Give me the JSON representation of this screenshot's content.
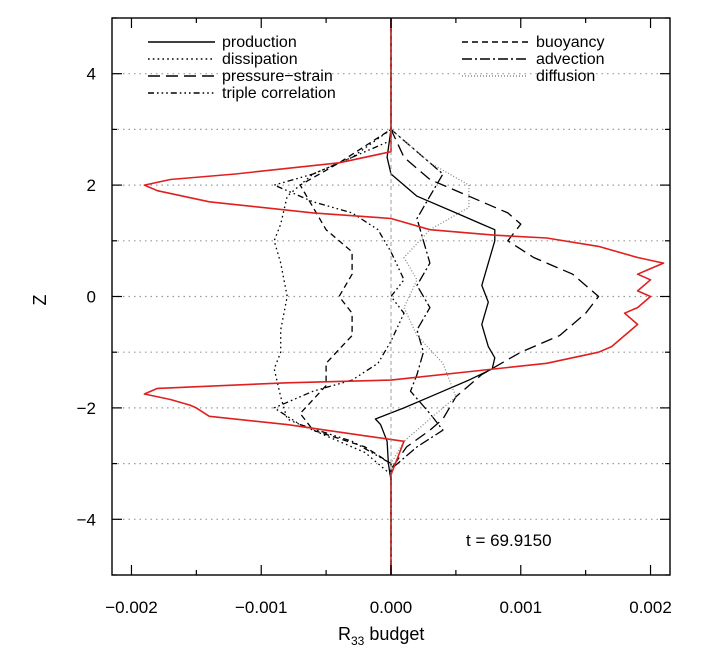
{
  "chart_data": {
    "type": "line",
    "xlabel": "R",
    "xlabel_sub": "33",
    "xlabel_suffix": " budget",
    "ylabel": "Z",
    "xlim": [
      -0.00215,
      0.00215
    ],
    "ylim": [
      -5,
      5
    ],
    "x_ticks": [
      -0.002,
      -0.001,
      0.0,
      0.001,
      0.002
    ],
    "x_tick_labels": [
      "−0.002",
      "−0.001",
      "0.000",
      "0.001",
      "0.002"
    ],
    "y_ticks": [
      -4,
      -2,
      0,
      2,
      4
    ],
    "y_tick_labels": [
      "−4",
      "−2",
      "0",
      "2",
      "4"
    ],
    "reference_lines_y": [
      -3,
      -1,
      1,
      3
    ],
    "annotation": "t = 69.9150",
    "legend_left": [
      "production",
      "dissipation",
      "pressure−strain",
      "triple correlation"
    ],
    "legend_right": [
      "buoyancy",
      "advection",
      "diffusion"
    ],
    "series": [
      {
        "name": "production",
        "color": "#000000",
        "dash": "",
        "points": [
          [
            0.0,
            -5
          ],
          [
            0.0,
            -3.3
          ],
          [
            -2e-05,
            -3.0
          ],
          [
            -3e-05,
            -2.6
          ],
          [
            -8e-05,
            -2.3
          ],
          [
            -0.00012,
            -2.2
          ],
          [
            0.0001,
            -2.0
          ],
          [
            0.0003,
            -1.8
          ],
          [
            0.0006,
            -1.5
          ],
          [
            0.00078,
            -1.3
          ],
          [
            0.0008,
            -1.1
          ],
          [
            0.00075,
            -0.9
          ],
          [
            0.0007,
            -0.5
          ],
          [
            0.00075,
            -0.1
          ],
          [
            0.0007,
            0.2
          ],
          [
            0.00075,
            0.6
          ],
          [
            0.0008,
            1.0
          ],
          [
            0.0008,
            1.2
          ],
          [
            0.0007,
            1.3
          ],
          [
            0.0005,
            1.5
          ],
          [
            0.0002,
            1.8
          ],
          [
            0.0,
            2.2
          ],
          [
            -3e-05,
            2.5
          ],
          [
            0.0,
            3.0
          ],
          [
            0.0,
            5
          ]
        ]
      },
      {
        "name": "dissipation",
        "color": "#000000",
        "dash": "1.6,3.2",
        "points": [
          [
            0.0,
            -5
          ],
          [
            0.0,
            -3.2
          ],
          [
            -0.0002,
            -2.8
          ],
          [
            -0.0005,
            -2.5
          ],
          [
            -0.0008,
            -2.2
          ],
          [
            -0.00085,
            -1.8
          ],
          [
            -0.0009,
            -1.3
          ],
          [
            -0.00085,
            -1.0
          ],
          [
            -0.00085,
            -0.6
          ],
          [
            -0.0008,
            0.0
          ],
          [
            -0.00085,
            0.6
          ],
          [
            -0.0009,
            1.0
          ],
          [
            -0.00085,
            1.3
          ],
          [
            -0.0008,
            1.8
          ],
          [
            -0.0006,
            2.2
          ],
          [
            -0.0003,
            2.5
          ],
          [
            0.0,
            3.0
          ],
          [
            0.0,
            5
          ]
        ]
      },
      {
        "name": "pressure−strain",
        "color": "#000000",
        "dash": "12,6",
        "points": [
          [
            0.0,
            -5
          ],
          [
            0.0,
            -3.1
          ],
          [
            0.00012,
            -2.7
          ],
          [
            0.0003,
            -2.4
          ],
          [
            0.0004,
            -2.2
          ],
          [
            0.0005,
            -1.8
          ],
          [
            0.0007,
            -1.4
          ],
          [
            0.001,
            -1.0
          ],
          [
            0.0013,
            -0.7
          ],
          [
            0.0015,
            -0.3
          ],
          [
            0.0016,
            0.0
          ],
          [
            0.0014,
            0.4
          ],
          [
            0.0011,
            0.7
          ],
          [
            0.0009,
            1.0
          ],
          [
            0.001,
            1.3
          ],
          [
            0.0009,
            1.5
          ],
          [
            0.0006,
            1.8
          ],
          [
            0.0003,
            2.1
          ],
          [
            0.0001,
            2.5
          ],
          [
            0.0,
            3.0
          ],
          [
            0.0,
            5
          ]
        ]
      },
      {
        "name": "triple correlation",
        "color": "#000000",
        "dash": "6,3,1.6,3,1.6,3,1.6,3",
        "points": [
          [
            0.0,
            -5
          ],
          [
            0.0,
            -3.0
          ],
          [
            -0.0003,
            -2.6
          ],
          [
            -0.0007,
            -2.3
          ],
          [
            -0.0009,
            -2.0
          ],
          [
            -0.0006,
            -1.7
          ],
          [
            -0.0003,
            -1.5
          ],
          [
            -0.0001,
            -1.2
          ],
          [
            0.0,
            -0.8
          ],
          [
            0.0001,
            -0.3
          ],
          [
            0.0,
            0.0
          ],
          [
            0.0001,
            0.3
          ],
          [
            0.0,
            0.8
          ],
          [
            -0.0001,
            1.2
          ],
          [
            -0.0003,
            1.5
          ],
          [
            -0.0006,
            1.7
          ],
          [
            -0.0009,
            2.0
          ],
          [
            -0.0006,
            2.2
          ],
          [
            -0.0003,
            2.5
          ],
          [
            0.0,
            2.8
          ],
          [
            0.0,
            5
          ]
        ]
      },
      {
        "name": "buoyancy",
        "color": "#000000",
        "dash": "6,4",
        "points": [
          [
            0.0,
            -5
          ],
          [
            0.0,
            -3.0
          ],
          [
            -0.0002,
            -2.7
          ],
          [
            -0.0006,
            -2.4
          ],
          [
            -0.0007,
            -2.1
          ],
          [
            -0.0005,
            -1.6
          ],
          [
            -0.0005,
            -1.2
          ],
          [
            -0.0003,
            -0.7
          ],
          [
            -0.0003,
            -0.3
          ],
          [
            -0.0004,
            0.0
          ],
          [
            -0.0003,
            0.4
          ],
          [
            -0.0003,
            0.8
          ],
          [
            -0.0005,
            1.2
          ],
          [
            -0.0006,
            1.6
          ],
          [
            -0.0007,
            2.0
          ],
          [
            -0.0004,
            2.4
          ],
          [
            -0.0002,
            2.7
          ],
          [
            0.0,
            3.0
          ],
          [
            0.0,
            5
          ]
        ]
      },
      {
        "name": "advection",
        "color": "#000000",
        "dash": "10,3,2,3",
        "points": [
          [
            0.0,
            -5
          ],
          [
            0.0,
            -3.1
          ],
          [
            0.0002,
            -2.7
          ],
          [
            0.0004,
            -2.4
          ],
          [
            0.0003,
            -2.1
          ],
          [
            0.00015,
            -1.7
          ],
          [
            0.0002,
            -1.4
          ],
          [
            0.00025,
            -1.0
          ],
          [
            0.0002,
            -0.6
          ],
          [
            0.0003,
            -0.2
          ],
          [
            0.0002,
            0.2
          ],
          [
            0.0003,
            0.6
          ],
          [
            0.00025,
            1.0
          ],
          [
            0.0002,
            1.4
          ],
          [
            0.0003,
            1.8
          ],
          [
            0.0004,
            2.2
          ],
          [
            0.0002,
            2.6
          ],
          [
            0.0,
            3.0
          ],
          [
            0.0,
            5
          ]
        ]
      },
      {
        "name": "diffusion",
        "color": "#888888",
        "dash": "1,2",
        "points": [
          [
            0.0,
            -5
          ],
          [
            0.0,
            -3.0
          ],
          [
            0.0001,
            -2.6
          ],
          [
            0.0003,
            -2.2
          ],
          [
            0.0005,
            -1.8
          ],
          [
            0.0004,
            -1.2
          ],
          [
            0.0002,
            -0.7
          ],
          [
            0.0001,
            -0.2
          ],
          [
            0.0002,
            0.3
          ],
          [
            0.0001,
            0.7
          ],
          [
            0.0003,
            1.2
          ],
          [
            0.0006,
            1.6
          ],
          [
            0.0006,
            2.0
          ],
          [
            0.0003,
            2.4
          ],
          [
            0.0,
            3.0
          ],
          [
            0.0,
            5
          ]
        ]
      },
      {
        "name": "",
        "color": "#e02020",
        "dash": "",
        "points": [
          [
            0.0,
            -5
          ],
          [
            0.0,
            -3.2
          ],
          [
            5e-05,
            -2.9
          ],
          [
            0.0001,
            -2.6
          ],
          [
            -0.0002,
            -2.5
          ],
          [
            -0.0008,
            -2.3
          ],
          [
            -0.0014,
            -2.15
          ],
          [
            -0.0015,
            -2.0
          ],
          [
            -0.00155,
            -1.95
          ],
          [
            -0.0017,
            -1.85
          ],
          [
            -0.0019,
            -1.75
          ],
          [
            -0.0018,
            -1.65
          ],
          [
            -0.0008,
            -1.55
          ],
          [
            0.0,
            -1.5
          ],
          [
            0.0012,
            -1.2
          ],
          [
            0.0016,
            -1.0
          ],
          [
            0.0017,
            -0.9
          ],
          [
            0.0018,
            -0.7
          ],
          [
            0.0019,
            -0.5
          ],
          [
            0.0018,
            -0.3
          ],
          [
            0.0019,
            -0.2
          ],
          [
            0.002,
            0.0
          ],
          [
            0.0019,
            0.1
          ],
          [
            0.002,
            0.3
          ],
          [
            0.0019,
            0.4
          ],
          [
            0.002,
            0.5
          ],
          [
            0.0021,
            0.6
          ],
          [
            0.0019,
            0.7
          ],
          [
            0.0016,
            0.9
          ],
          [
            0.0012,
            1.05
          ],
          [
            0.0008,
            1.1
          ],
          [
            0.0003,
            1.2
          ],
          [
            0.0,
            1.4
          ],
          [
            -0.0006,
            1.5
          ],
          [
            -0.0014,
            1.7
          ],
          [
            -0.0018,
            1.9
          ],
          [
            -0.0019,
            2.0
          ],
          [
            -0.0017,
            2.1
          ],
          [
            -0.0012,
            2.2
          ],
          [
            -0.0004,
            2.4
          ],
          [
            0.0,
            2.6
          ],
          [
            0.0,
            5
          ]
        ]
      }
    ]
  }
}
